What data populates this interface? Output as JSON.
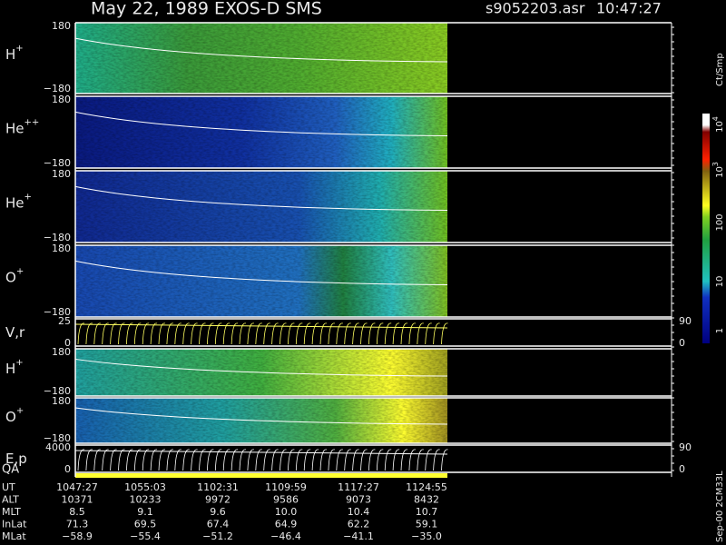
{
  "header": {
    "title": "May 22, 1989   EXOS-D SMS",
    "file": "s9052203.asr",
    "time": "10:47:27"
  },
  "panels": [
    {
      "label": "H",
      "sup": "+",
      "top": "180",
      "bottom": "−180"
    },
    {
      "label": "He",
      "sup": "++",
      "top": "180",
      "bottom": "−180"
    },
    {
      "label": "He",
      "sup": "+",
      "top": "180",
      "bottom": "−180"
    },
    {
      "label": "O",
      "sup": "+",
      "top": "180",
      "bottom": "−180"
    }
  ],
  "vr": {
    "label": "V,r",
    "top": "25",
    "bottom": "0",
    "right_top": "90",
    "right_bottom": "0"
  },
  "panels2": [
    {
      "label": "H",
      "sup": "+",
      "top": "180",
      "bottom": "−180"
    },
    {
      "label": "O",
      "sup": "+",
      "top": "180",
      "bottom": "−180"
    }
  ],
  "ep": {
    "label": "E,p",
    "top": "4000",
    "bottom": "0",
    "right_top": "90",
    "right_bottom": "0"
  },
  "qa": "QA",
  "colorbar": {
    "unit": "Ct/Smp",
    "labels": [
      {
        "text": "10",
        "exp": "4"
      },
      {
        "text": "10",
        "exp": "3"
      },
      {
        "text": "100"
      },
      {
        "text": "10"
      },
      {
        "text": "1"
      }
    ]
  },
  "footer": "Sep-00 2CM33L",
  "table": {
    "rows": [
      {
        "label": "UT",
        "values": [
          "1047:27",
          "1055:03",
          "1102:31",
          "1109:59",
          "1117:27",
          "1124:55"
        ]
      },
      {
        "label": "ALT",
        "values": [
          "10371",
          "10233",
          "9972",
          "9586",
          "9073",
          "8432"
        ]
      },
      {
        "label": "MLT",
        "values": [
          "8.5",
          "9.1",
          "9.6",
          "10.0",
          "10.4",
          "10.7"
        ]
      },
      {
        "label": "InLat",
        "values": [
          "71.3",
          "69.5",
          "67.4",
          "64.9",
          "62.2",
          "59.1"
        ]
      },
      {
        "label": "MLat",
        "values": [
          "−58.9",
          "−55.4",
          "−51.2",
          "−46.4",
          "−41.1",
          "−35.0"
        ]
      }
    ]
  }
}
